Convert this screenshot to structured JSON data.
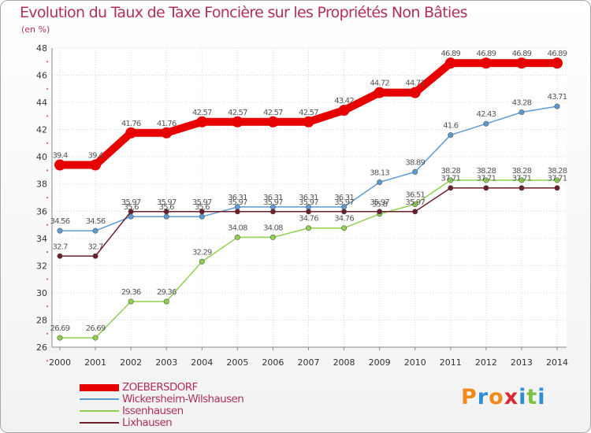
{
  "title": "Evolution du Taux de Taxe Foncière sur les Propriétés Non Bâties",
  "subtitle": "(en %)",
  "brand": {
    "name": "Proxiti",
    "letters": [
      "P",
      "r",
      "o",
      "x",
      "i",
      "t",
      "i"
    ],
    "letter_colors": [
      "#f08a1c",
      "#2f8fd6",
      "#f08a1c",
      "#d9262f",
      "#2f8fd6",
      "#7cc243",
      "#2f8fd6"
    ]
  },
  "chart_data": {
    "type": "line",
    "title": "Evolution du Taux de Taxe Foncière sur les Propriétés Non Bâties",
    "ylabel": "(en %)",
    "xlabel": "",
    "ylim": [
      26,
      48
    ],
    "yticks": [
      26,
      28,
      30,
      32,
      34,
      36,
      38,
      40,
      42,
      44,
      46,
      48
    ],
    "grid": true,
    "legend_position": "bottom-left",
    "x": [
      "2000",
      "2001",
      "2002",
      "2003",
      "2004",
      "2005",
      "2006",
      "2007",
      "2008",
      "2009",
      "2010",
      "2011",
      "2012",
      "2013",
      "2014"
    ],
    "series": [
      {
        "name": "ZOEBERSDORF",
        "color": "#e60000",
        "emphasis": true,
        "values": [
          39.4,
          39.4,
          41.76,
          41.76,
          42.57,
          42.57,
          42.57,
          42.57,
          43.42,
          44.72,
          44.72,
          46.89,
          46.89,
          46.89,
          46.89
        ],
        "labels": [
          "39.4",
          "39.4",
          "41.76",
          "41.76",
          "42.57",
          "42.57",
          "42.57",
          "42.57",
          "43.42",
          "44.72",
          "44.72",
          "46.89",
          "46.89",
          "46.89",
          "46.89"
        ]
      },
      {
        "name": "Wickersheim-Wilshausen",
        "color": "#5b9bd5",
        "values": [
          34.56,
          34.56,
          35.6,
          35.6,
          35.6,
          36.31,
          36.31,
          36.31,
          36.31,
          38.13,
          38.89,
          41.6,
          42.43,
          43.28,
          43.71
        ],
        "labels": [
          "34.56",
          "34.56",
          "35.6",
          "35.6",
          "35.6",
          "36.31",
          "36.31",
          "36.31",
          "36.31",
          "38.13",
          "38.89",
          "41.6",
          "42.43",
          "43.28",
          "43.71"
        ]
      },
      {
        "name": "Issenhausen",
        "color": "#8fd14f",
        "values": [
          26.69,
          26.69,
          29.36,
          29.36,
          32.29,
          34.08,
          34.08,
          34.76,
          34.76,
          35.8,
          36.51,
          38.28,
          38.28,
          38.28,
          38.28
        ],
        "labels": [
          "26.69",
          "26.69",
          "29.36",
          "29.36",
          "32.29",
          "34.08",
          "34.08",
          "34.76",
          "34.76",
          "35.8",
          "36.51",
          "38.28",
          "38.28",
          "38.28",
          "38.28"
        ]
      },
      {
        "name": "Lixhausen",
        "color": "#6b1f2a",
        "values": [
          32.7,
          32.7,
          35.97,
          35.97,
          35.97,
          35.97,
          35.97,
          35.97,
          35.97,
          35.97,
          35.97,
          37.71,
          37.71,
          37.71,
          37.71
        ],
        "labels": [
          "32.7",
          "32.7",
          "35.97",
          "35.97",
          "35.97",
          "35.97",
          "35.97",
          "35.97",
          "35.97",
          "35.97",
          "35.97",
          "37.71",
          "37.71",
          "37.71",
          "37.71"
        ]
      }
    ]
  }
}
